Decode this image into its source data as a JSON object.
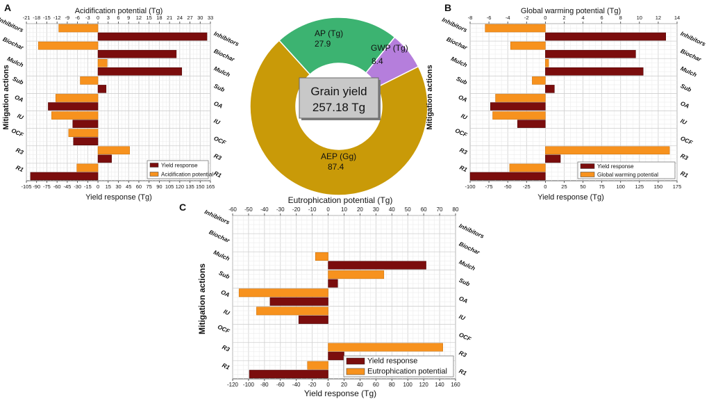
{
  "panels": {
    "A": {
      "panel_label": "A",
      "top_title": "Acidification potential (Tg)",
      "bottom_title": "Yield response (Tg)",
      "side_title": "Mitigation actions",
      "legend": [
        "Yield response",
        "Acidification potential"
      ]
    },
    "B": {
      "panel_label": "B",
      "top_title": "Global warming potential (Tg)",
      "bottom_title": "Yield response (Tg)",
      "side_title": "Mitigation actions",
      "legend": [
        "Yield response",
        "Global warming potential"
      ]
    },
    "C": {
      "panel_label": "C",
      "top_title": "Eutrophication potential (Tg)",
      "bottom_title": "Yield response (Tg)",
      "side_title": "Mitigation actions",
      "legend": [
        "Yield response",
        "Eutrophication potential"
      ]
    }
  },
  "colors": {
    "yield": "#7b0d0d",
    "env": "#f7921e",
    "ap": "#3cb371",
    "gwp": "#b57edc",
    "aep": "#c99a08",
    "center_box": "#c8c8c8"
  },
  "chart_data": [
    {
      "id": "A",
      "type": "bar",
      "orientation": "horizontal",
      "title": "Acidification potential (Tg)",
      "categories": [
        "Inhibitors",
        "Biochar",
        "Mulch",
        "Sub",
        "OA",
        "IU",
        "OCF",
        "R3",
        "R1"
      ],
      "yield_axis": {
        "label": "Yield response (Tg)",
        "range": [
          -105,
          165
        ],
        "ticks": [
          -105,
          -90,
          -75,
          -60,
          -45,
          -30,
          -15,
          0,
          15,
          30,
          45,
          60,
          75,
          90,
          105,
          120,
          135,
          150,
          165
        ]
      },
      "env_axis": {
        "label": "Acidification potential (Tg)",
        "range": [
          -21,
          33
        ],
        "ticks": [
          -21,
          -18,
          -15,
          -12,
          -9,
          -6,
          -3,
          0,
          3,
          6,
          9,
          12,
          15,
          18,
          21,
          24,
          27,
          30,
          33
        ]
      },
      "series": [
        {
          "name": "Yield response",
          "values": [
            160,
            115,
            123,
            12,
            -73,
            -37,
            -36,
            20,
            -99
          ]
        },
        {
          "name": "Acidification potential",
          "values": [
            -11.5,
            -17.5,
            2.7,
            -5.2,
            -12.4,
            -13.6,
            -8.6,
            9.3,
            -6.2
          ]
        }
      ]
    },
    {
      "id": "B",
      "type": "bar",
      "orientation": "horizontal",
      "title": "Global warming potential (Tg)",
      "categories": [
        "Inhibitors",
        "Biochar",
        "Mulch",
        "Sub",
        "OA",
        "IU",
        "OCF",
        "R3",
        "R1"
      ],
      "yield_axis": {
        "label": "Yield response (Tg)",
        "range": [
          -100,
          175
        ],
        "ticks": [
          -100,
          -75,
          -50,
          -25,
          0,
          25,
          50,
          75,
          100,
          125,
          150,
          175
        ]
      },
      "env_axis": {
        "label": "Global warming potential (Tg)",
        "range": [
          -8,
          14
        ],
        "ticks": [
          -8,
          -6,
          -4,
          -2,
          0,
          2,
          4,
          6,
          8,
          10,
          12,
          14
        ]
      },
      "series": [
        {
          "name": "Yield response",
          "values": [
            160,
            120,
            130,
            12,
            -73,
            -37,
            0,
            20,
            -100
          ]
        },
        {
          "name": "Global warming potential",
          "values": [
            -6.4,
            -3.7,
            0.35,
            -1.4,
            -5.3,
            -5.6,
            0,
            13.2,
            -3.8
          ]
        }
      ]
    },
    {
      "id": "C",
      "type": "bar",
      "orientation": "horizontal",
      "title": "Eutrophication potential (Tg)",
      "categories": [
        "Inhibitors",
        "Biochar",
        "Mulch",
        "Sub",
        "OA",
        "IU",
        "OCF",
        "R3",
        "R1"
      ],
      "yield_axis": {
        "label": "Yield response (Tg)",
        "range": [
          -120,
          160
        ],
        "ticks": [
          -120,
          -100,
          -80,
          -60,
          -40,
          -20,
          0,
          20,
          40,
          60,
          80,
          100,
          120,
          140,
          160
        ]
      },
      "env_axis": {
        "label": "Eutrophication potential (Tg)",
        "range": [
          -60,
          80
        ],
        "ticks": [
          -60,
          -50,
          -40,
          -30,
          -20,
          -10,
          0,
          10,
          20,
          30,
          40,
          50,
          60,
          70,
          80
        ]
      },
      "series": [
        {
          "name": "Yield response",
          "values": [
            0,
            0,
            123,
            12,
            -73,
            -37,
            0,
            20,
            -99
          ]
        },
        {
          "name": "Eutrophication potential",
          "values": [
            0,
            0,
            -8,
            35,
            -56,
            -45,
            0,
            72,
            -13
          ]
        }
      ]
    },
    {
      "id": "donut",
      "type": "pie",
      "center_label": "Grain yield",
      "center_value": "257.18 Tg",
      "slices": [
        {
          "name": "AP (Tg)",
          "label": "AP (Tg)",
          "value_text": "27.9",
          "value": 27.9
        },
        {
          "name": "GWP (Tg)",
          "label": "GWP (Tg)",
          "value_text": "8.4",
          "value": 8.4
        },
        {
          "name": "AEP (Gg)",
          "label": "AEP (Gg)",
          "value_text": "87.4",
          "value": 87.4
        }
      ]
    }
  ]
}
